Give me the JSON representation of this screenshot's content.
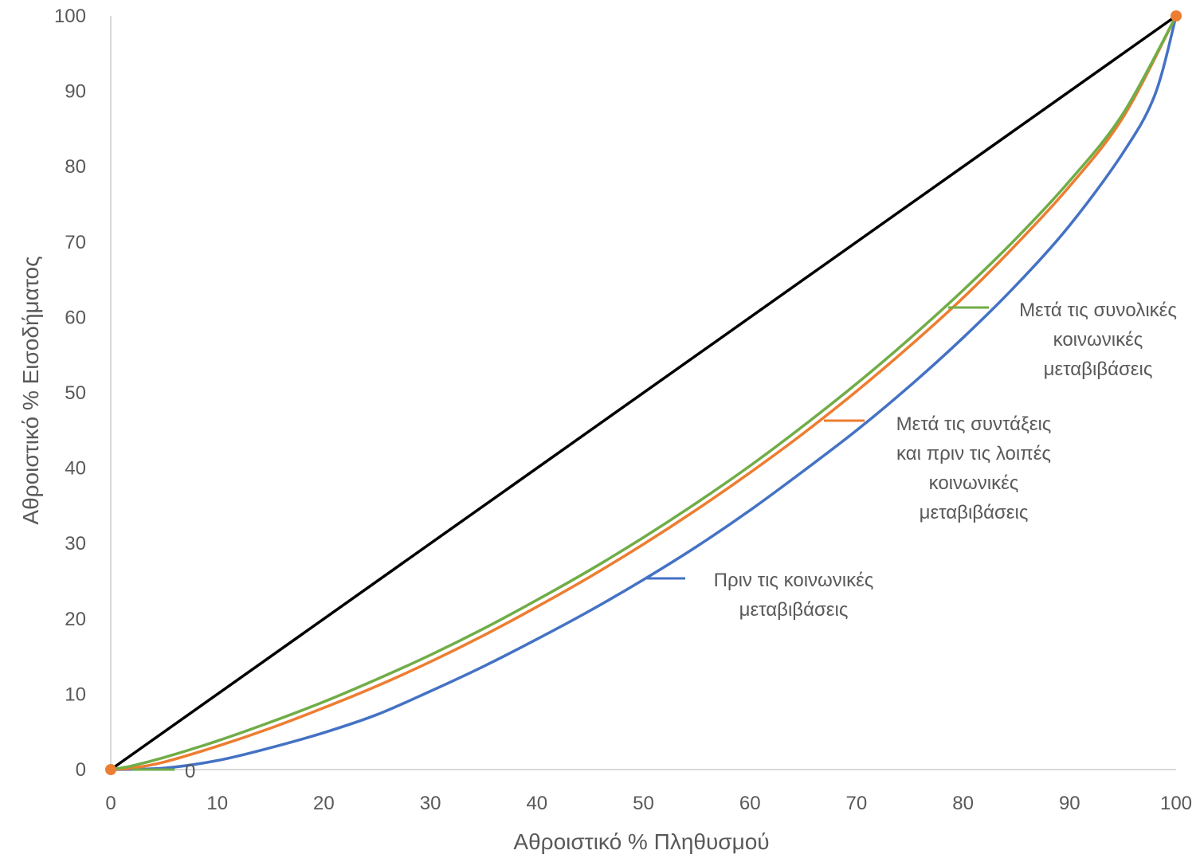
{
  "chart_data": {
    "type": "line",
    "title": "",
    "xlabel": "Αθροιστικό % Πληθυσμού",
    "ylabel": "Αθροιστικό % Εισοδήματος",
    "xlim": [
      0,
      100
    ],
    "ylim": [
      0,
      100
    ],
    "x_ticks": [
      "0",
      "10",
      "20",
      "30",
      "40",
      "50",
      "60",
      "70",
      "80",
      "90",
      "100"
    ],
    "y_ticks": [
      "0",
      "10",
      "20",
      "30",
      "40",
      "50",
      "60",
      "70",
      "80",
      "90",
      "100"
    ],
    "grid": false,
    "colors": {
      "equality": "#000000",
      "before": "#4472C4",
      "after_pensions": "#ED7D31",
      "after_all": "#70AD47",
      "axis": "#D9D9D9",
      "text": "#595959"
    },
    "series": [
      {
        "key": "equality",
        "x": [
          0,
          100
        ],
        "y": [
          0,
          100
        ]
      },
      {
        "key": "before",
        "name": "Πριν τις κοινωνικές μεταβιβάσεις",
        "x": [
          0,
          5,
          10,
          15,
          20,
          25,
          30,
          35,
          40,
          45,
          50,
          55,
          60,
          65,
          70,
          75,
          80,
          85,
          90,
          95,
          98,
          100
        ],
        "y": [
          0,
          0.2,
          1.2,
          2.9,
          4.9,
          7.3,
          10.4,
          13.7,
          17.3,
          21.1,
          25.2,
          29.6,
          34.4,
          39.6,
          45.0,
          50.9,
          57.3,
          64.3,
          72.2,
          81.8,
          89.5,
          100
        ]
      },
      {
        "key": "after_pensions",
        "name": "Μετά τις συντάξεις και πριν τις λοιπές κοινωνικές μεταβιβάσεις",
        "x": [
          0,
          2,
          5,
          10,
          15,
          20,
          25,
          30,
          35,
          40,
          45,
          50,
          55,
          60,
          65,
          70,
          75,
          80,
          85,
          90,
          95,
          100
        ],
        "y": [
          0,
          0.2,
          1.0,
          3.1,
          5.5,
          8.2,
          11.1,
          14.3,
          17.8,
          21.6,
          25.6,
          29.9,
          34.5,
          39.4,
          44.6,
          50.2,
          56.2,
          62.6,
          69.7,
          77.4,
          86.5,
          100
        ]
      },
      {
        "key": "after_all",
        "name": "Μετά τις συνολικές κοινωνικές μεταβιβάσεις",
        "x": [
          0,
          2,
          5,
          10,
          15,
          20,
          25,
          30,
          35,
          40,
          45,
          50,
          55,
          60,
          65,
          70,
          75,
          80,
          85,
          90,
          95,
          100
        ],
        "y": [
          0,
          0.5,
          1.6,
          3.8,
          6.3,
          9.0,
          12.0,
          15.2,
          18.7,
          22.5,
          26.5,
          30.8,
          35.4,
          40.3,
          45.6,
          51.2,
          57.2,
          63.6,
          70.5,
          78.1,
          87.0,
          100
        ]
      }
    ],
    "markers": [
      {
        "x": 0,
        "y": 0,
        "color": "#ED7D31"
      },
      {
        "x": 100,
        "y": 100,
        "color": "#ED7D31"
      }
    ],
    "annotations": [
      {
        "key": "before",
        "lines": [
          "Πριν τις κοινωνικές",
          "μεταβιβάσεις"
        ]
      },
      {
        "key": "after_pensions",
        "lines": [
          "Μετά τις συντάξεις",
          "και πριν τις λοιπές",
          "κοινωνικές",
          "μεταβιβάσεις"
        ]
      },
      {
        "key": "after_all",
        "lines": [
          "Μετά τις συνολικές",
          "κοινωνικές",
          "μεταβιβάσεις"
        ]
      }
    ],
    "zero_label": {
      "text": "0",
      "color": "#70AD47"
    }
  }
}
